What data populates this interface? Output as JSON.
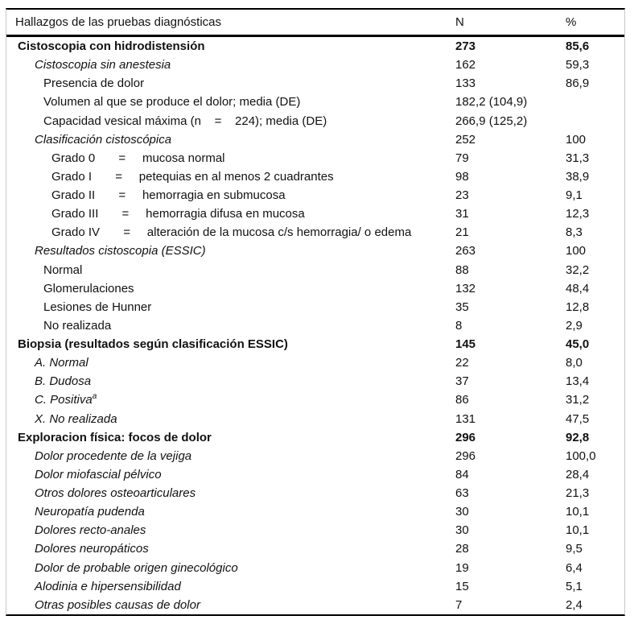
{
  "colors": {
    "rule": "#000000",
    "frame": "#c9c9c9",
    "text": "#111111",
    "background": "#ffffff"
  },
  "table": {
    "header": {
      "findings": "Hallazgos de las pruebas diagnósticas",
      "n": "N",
      "pct": "%"
    },
    "rows": [
      {
        "label": "Cistoscopia con hidrodistensión",
        "n": "273",
        "pct": "85,6",
        "style": "bold",
        "indent": 0
      },
      {
        "label": "Cistoscopia sin anestesia",
        "n": "162",
        "pct": "59,3",
        "style": "italic",
        "indent": 1
      },
      {
        "label": "Presencia de dolor",
        "n": "133",
        "pct": "86,9",
        "style": "plain",
        "indent": 2
      },
      {
        "label": "Volumen al que se produce el dolor; media (DE)",
        "n": "182,2 (104,9)",
        "pct": "",
        "style": "plain",
        "indent": 2
      },
      {
        "label": "Capacidad vesical máxima (n    =    224); media (DE)",
        "n": "266,9 (125,2)",
        "pct": "",
        "style": "plain",
        "indent": 2
      },
      {
        "label": "Clasificación cistoscópica",
        "n": "252",
        "pct": "100",
        "style": "italic",
        "indent": 1
      },
      {
        "label": "Grado 0       =     mucosa normal",
        "n": "79",
        "pct": "31,3",
        "style": "plain",
        "indent": 3
      },
      {
        "label": "Grado I       =     petequias en al menos 2 cuadrantes",
        "n": "98",
        "pct": "38,9",
        "style": "plain",
        "indent": 3
      },
      {
        "label": "Grado II       =     hemorragia en submucosa",
        "n": "23",
        "pct": "9,1",
        "style": "plain",
        "indent": 3
      },
      {
        "label": "Grado III       =     hemorragia difusa en mucosa",
        "n": "31",
        "pct": "12,3",
        "style": "plain",
        "indent": 3
      },
      {
        "label": "Grado IV       =     alteración de la mucosa c/s hemorragia/ o edema",
        "n": "21",
        "pct": "8,3",
        "style": "plain",
        "indent": 3
      },
      {
        "label": "Resultados cistoscopia (ESSIC)",
        "n": "263",
        "pct": "100",
        "style": "italic",
        "indent": 1
      },
      {
        "label": "Normal",
        "n": "88",
        "pct": "32,2",
        "style": "plain",
        "indent": 2
      },
      {
        "label": "Glomerulaciones",
        "n": "132",
        "pct": "48,4",
        "style": "plain",
        "indent": 2
      },
      {
        "label": "Lesiones de Hunner",
        "n": "35",
        "pct": "12,8",
        "style": "plain",
        "indent": 2
      },
      {
        "label": "No realizada",
        "n": "8",
        "pct": "2,9",
        "style": "plain",
        "indent": 2
      },
      {
        "label": "Biopsia (resultados según clasificación ESSIC)",
        "n": "145",
        "pct": "45,0",
        "style": "bold",
        "indent": 0
      },
      {
        "label": "A. Normal",
        "n": "22",
        "pct": "8,0",
        "style": "italic",
        "indent": 1
      },
      {
        "label": "B. Dudosa",
        "n": "37",
        "pct": "13,4",
        "style": "italic",
        "indent": 1
      },
      {
        "label": "C. Positiva",
        "sup": "a",
        "n": "86",
        "pct": "31,2",
        "style": "italic",
        "indent": 1
      },
      {
        "label": "X. No realizada",
        "n": "131",
        "pct": "47,5",
        "style": "italic",
        "indent": 1
      },
      {
        "label": "Exploracion física: focos de dolor",
        "n": "296",
        "pct": "92,8",
        "style": "bold",
        "indent": 0
      },
      {
        "label": "Dolor procedente de la vejiga",
        "n": "296",
        "pct": "100,0",
        "style": "italic",
        "indent": 1
      },
      {
        "label": "Dolor miofascial pélvico",
        "n": "84",
        "pct": "28,4",
        "style": "italic",
        "indent": 1
      },
      {
        "label": "Otros dolores osteoarticulares",
        "n": "63",
        "pct": "21,3",
        "style": "italic",
        "indent": 1
      },
      {
        "label": "Neuropatía pudenda",
        "n": "30",
        "pct": "10,1",
        "style": "italic",
        "indent": 1
      },
      {
        "label": "Dolores recto-anales",
        "n": "30",
        "pct": "10,1",
        "style": "italic",
        "indent": 1
      },
      {
        "label": "Dolores neuropáticos",
        "n": "28",
        "pct": "9,5",
        "style": "italic",
        "indent": 1
      },
      {
        "label": "Dolor de probable origen ginecológico",
        "n": "19",
        "pct": "6,4",
        "style": "italic",
        "indent": 1
      },
      {
        "label": "Alodinia e hipersensibilidad",
        "n": "15",
        "pct": "5,1",
        "style": "italic",
        "indent": 1
      },
      {
        "label": "Otras posibles causas de dolor",
        "n": "7",
        "pct": "2,4",
        "style": "italic",
        "indent": 1
      }
    ]
  }
}
